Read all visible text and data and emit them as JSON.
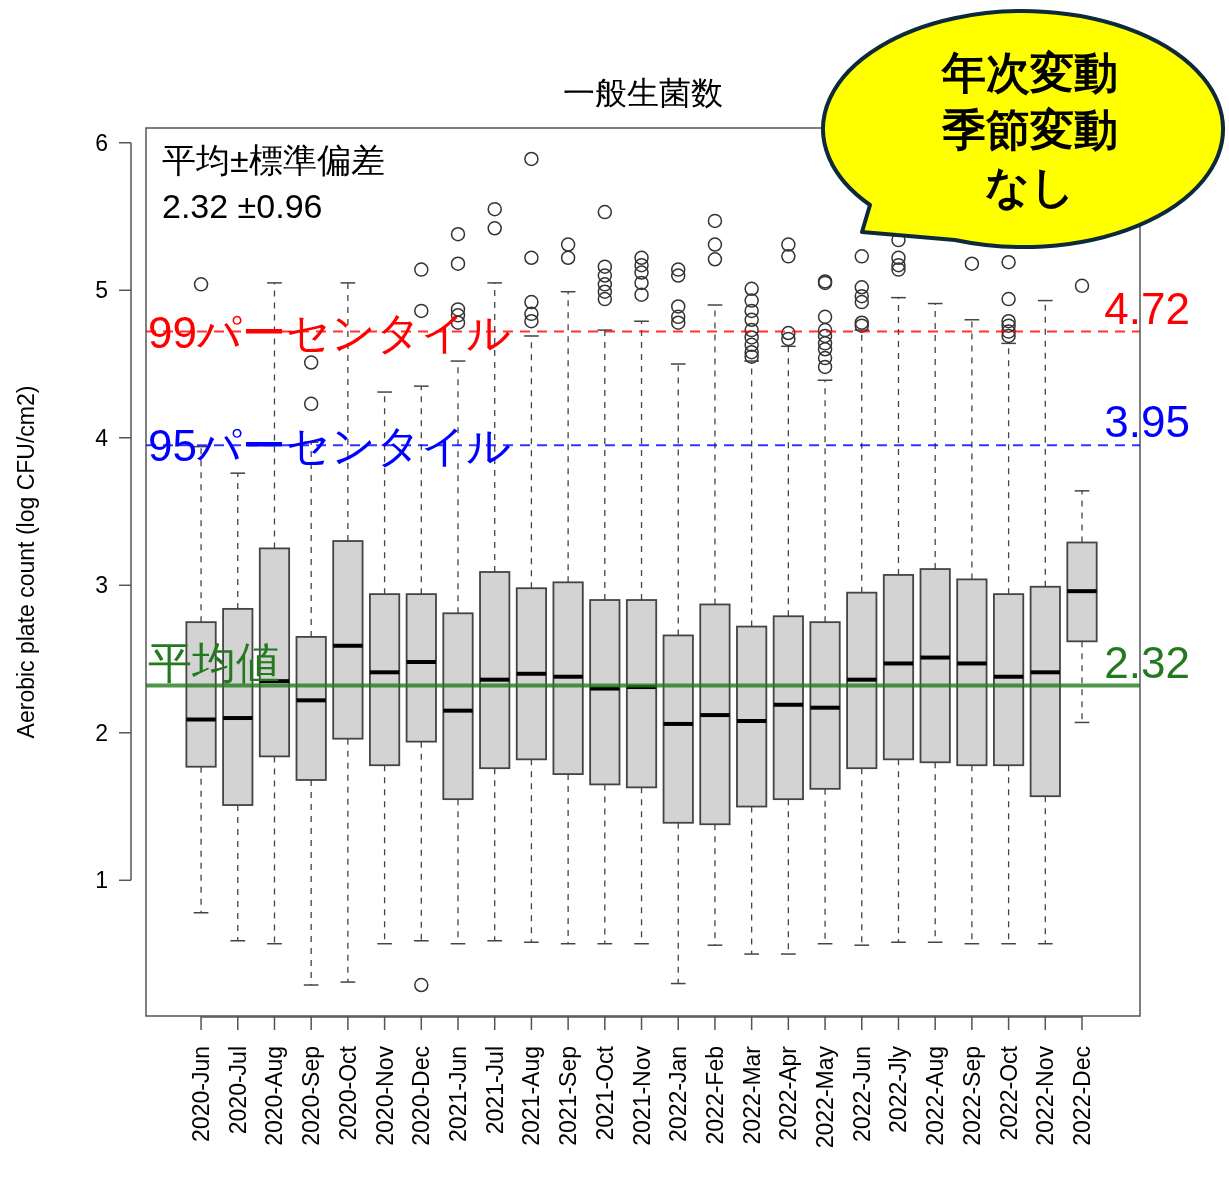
{
  "chart_data": {
    "type": "box",
    "title": "一般生菌数",
    "ylabel": "Aerobic plate count (log CFU/cm2)",
    "categories": [
      "2020-Jun",
      "2020-Jul",
      "2020-Aug",
      "2020-Sep",
      "2020-Oct",
      "2020-Nov",
      "2020-Dec",
      "2021-Jun",
      "2021-Jul",
      "2021-Aug",
      "2021-Sep",
      "2021-Oct",
      "2021-Nov",
      "2022-Jan",
      "2022-Feb",
      "2022-Mar",
      "2022-Apr",
      "2022-May",
      "2022-Jun",
      "2022-Jly",
      "2022-Aug",
      "2022-Sep",
      "2022-Oct",
      "2022-Nov",
      "2022-Dec"
    ],
    "ylim": [
      0.08,
      6.1
    ],
    "yticks": [
      1,
      2,
      3,
      4,
      5,
      6
    ],
    "series": [
      {
        "color": "#d3d3d3",
        "boxes": [
          {
            "low": 0.78,
            "q1": 1.77,
            "median": 2.09,
            "q3": 2.75,
            "high": 3.94,
            "outliers": [
              5.04
            ]
          },
          {
            "low": 0.59,
            "q1": 1.51,
            "median": 2.1,
            "q3": 2.84,
            "high": 3.76
          },
          {
            "low": 0.57,
            "q1": 1.84,
            "median": 2.35,
            "q3": 3.25,
            "high": 5.05
          },
          {
            "low": 0.29,
            "q1": 1.68,
            "median": 2.22,
            "q3": 2.65,
            "high": 3.97,
            "outliers": [
              4.51,
              4.23
            ]
          },
          {
            "low": 0.31,
            "q1": 1.96,
            "median": 2.59,
            "q3": 3.3,
            "high": 5.05
          },
          {
            "low": 0.57,
            "q1": 1.78,
            "median": 2.41,
            "q3": 2.94,
            "high": 4.31
          },
          {
            "low": 0.59,
            "q1": 1.94,
            "median": 2.48,
            "q3": 2.94,
            "high": 4.35,
            "outliers": [
              5.14,
              4.86,
              0.29
            ]
          },
          {
            "low": 0.57,
            "q1": 1.55,
            "median": 2.15,
            "q3": 2.81,
            "high": 4.52,
            "outliers": [
              5.38,
              5.18,
              4.87,
              4.83,
              4.78
            ]
          },
          {
            "low": 0.59,
            "q1": 1.76,
            "median": 2.36,
            "q3": 3.09,
            "high": 5.05,
            "outliers": [
              5.55,
              5.42
            ]
          },
          {
            "low": 0.58,
            "q1": 1.82,
            "median": 2.4,
            "q3": 2.98,
            "high": 4.69,
            "outliers": [
              5.89,
              5.22,
              4.92,
              4.84,
              4.79
            ]
          },
          {
            "low": 0.57,
            "q1": 1.72,
            "median": 2.38,
            "q3": 3.02,
            "high": 4.99,
            "outliers": [
              5.31,
              5.22
            ]
          },
          {
            "low": 0.57,
            "q1": 1.65,
            "median": 2.3,
            "q3": 2.9,
            "high": 4.73,
            "outliers": [
              5.53,
              5.16,
              5.1,
              5.04,
              4.99,
              4.94
            ]
          },
          {
            "low": 0.57,
            "q1": 1.63,
            "median": 2.31,
            "q3": 2.9,
            "high": 4.79,
            "outliers": [
              5.22,
              5.17,
              5.12,
              5.05,
              4.97
            ]
          },
          {
            "low": 0.3,
            "q1": 1.39,
            "median": 2.06,
            "q3": 2.66,
            "high": 4.5,
            "outliers": [
              5.14,
              5.1,
              4.89,
              4.82,
              4.78
            ]
          },
          {
            "low": 0.56,
            "q1": 1.38,
            "median": 2.12,
            "q3": 2.87,
            "high": 4.9,
            "outliers": [
              5.47,
              5.31,
              5.21
            ]
          },
          {
            "low": 0.5,
            "q1": 1.5,
            "median": 2.08,
            "q3": 2.72,
            "high": 4.52,
            "outliers": [
              5.01,
              4.93,
              4.86,
              4.8,
              4.73,
              4.68,
              4.63,
              4.58,
              4.55
            ]
          },
          {
            "low": 0.5,
            "q1": 1.55,
            "median": 2.19,
            "q3": 2.79,
            "high": 4.62,
            "outliers": [
              5.31,
              5.23,
              4.71,
              4.67
            ]
          },
          {
            "low": 0.57,
            "q1": 1.62,
            "median": 2.17,
            "q3": 2.75,
            "high": 4.39,
            "outliers": [
              5.06,
              5.05,
              4.82,
              4.73,
              4.69,
              4.64,
              4.6,
              4.54,
              4.48
            ]
          },
          {
            "low": 0.56,
            "q1": 1.76,
            "median": 2.36,
            "q3": 2.95,
            "high": 4.73,
            "outliers": [
              5.23,
              5.02,
              4.96,
              4.92,
              4.78,
              4.76
            ]
          },
          {
            "low": 0.58,
            "q1": 1.82,
            "median": 2.47,
            "q3": 3.07,
            "high": 4.95,
            "outliers": [
              5.34,
              5.22,
              5.17,
              5.14
            ]
          },
          {
            "low": 0.58,
            "q1": 1.8,
            "median": 2.51,
            "q3": 3.11,
            "high": 4.91
          },
          {
            "low": 0.57,
            "q1": 1.78,
            "median": 2.47,
            "q3": 3.04,
            "high": 4.8,
            "outliers": [
              5.18
            ]
          },
          {
            "low": 0.57,
            "q1": 1.78,
            "median": 2.38,
            "q3": 2.94,
            "high": 4.64,
            "outliers": [
              5.19,
              4.94,
              4.79,
              4.76,
              4.72,
              4.69
            ]
          },
          {
            "low": 0.57,
            "q1": 1.57,
            "median": 2.41,
            "q3": 2.99,
            "high": 4.93
          },
          {
            "low": 2.07,
            "q1": 2.62,
            "median": 2.96,
            "q3": 3.29,
            "high": 3.64,
            "outliers": [
              5.03
            ]
          }
        ]
      }
    ],
    "ref_lines": [
      {
        "axis": "y",
        "value": 4.72,
        "label": "99パーセンタイル",
        "color": "#ff0000",
        "line_style": "dashed"
      },
      {
        "axis": "y",
        "value": 3.95,
        "label": "95パーセンタイル",
        "color": "#0000ff",
        "line_style": "dashed"
      },
      {
        "axis": "y",
        "value": 2.32,
        "label": "平均値",
        "color": "#237a1e",
        "line_style": "solid"
      }
    ],
    "annotations": [
      "平均±標準偏差",
      "2.32 ±0.96",
      "年次変動",
      "季節変動",
      "なし",
      "4.72",
      "3.95",
      "2.32"
    ]
  }
}
